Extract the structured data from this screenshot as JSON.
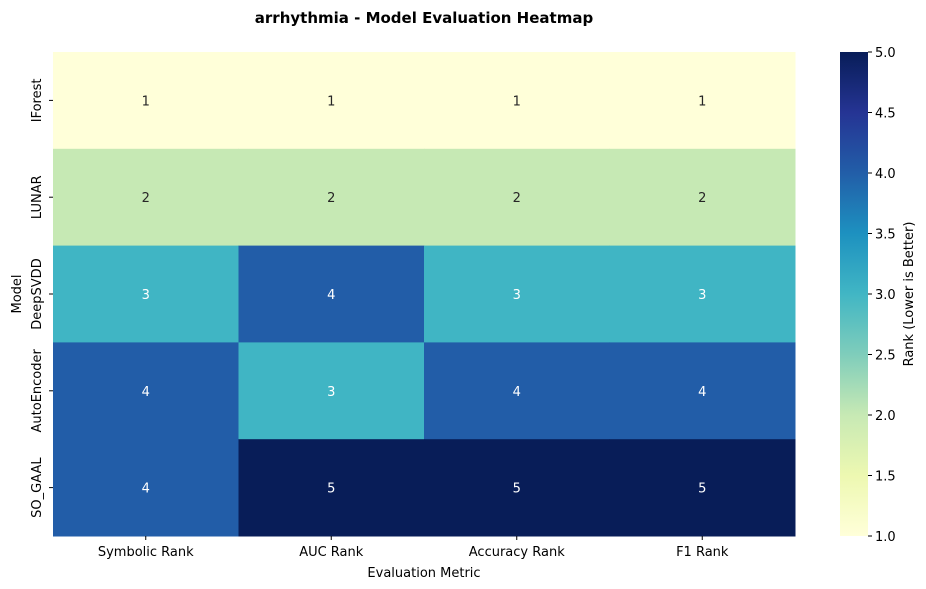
{
  "chart_data": {
    "type": "heatmap",
    "title": "arrhythmia - Model Evaluation Heatmap",
    "xlabel": "Evaluation Metric",
    "ylabel": "Model",
    "x_categories": [
      "Symbolic Rank",
      "AUC Rank",
      "Accuracy Rank",
      "F1 Rank"
    ],
    "y_categories": [
      "IForest",
      "LUNAR",
      "DeepSVDD",
      "AutoEncoder",
      "SO_GAAL"
    ],
    "values": [
      [
        1,
        1,
        1,
        1
      ],
      [
        2,
        2,
        2,
        2
      ],
      [
        3,
        4,
        3,
        3
      ],
      [
        4,
        3,
        4,
        4
      ],
      [
        4,
        5,
        5,
        5
      ]
    ],
    "colorbar": {
      "label": "Rank (Lower is Better)",
      "range": [
        1.0,
        5.0
      ],
      "ticks": [
        "1.0",
        "1.5",
        "2.0",
        "2.5",
        "3.0",
        "3.5",
        "4.0",
        "4.5",
        "5.0"
      ],
      "colormap": "YlGnBu"
    },
    "colors": {
      "1": "#ffffd9",
      "2": "#c6e9b4",
      "3": "#40b5c4",
      "4": "#225da8",
      "5": "#081d58"
    }
  }
}
